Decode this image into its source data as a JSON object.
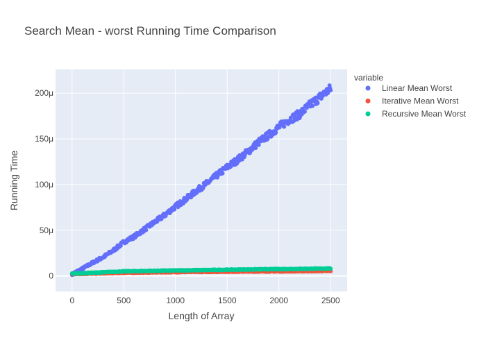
{
  "chart_data": {
    "type": "scatter",
    "title": "Search Mean - worst Running Time Comparison",
    "xlabel": "Length of Array",
    "ylabel": "Running Time",
    "xlim": [
      -160,
      2660
    ],
    "ylim": [
      -1.7e-05,
      0.000226
    ],
    "x_ticks": [
      0,
      500,
      1000,
      1500,
      2000,
      2500
    ],
    "x_tick_labels": [
      "0",
      "500",
      "1000",
      "1500",
      "2000",
      "2500"
    ],
    "y_ticks": [
      0,
      5e-05,
      0.0001,
      0.00015,
      0.0002
    ],
    "y_tick_labels": [
      "0",
      "50μ",
      "100μ",
      "150μ",
      "200μ"
    ],
    "grid": true,
    "background": "#e5ecf6",
    "legend": {
      "title": "variable",
      "position": "right"
    },
    "series": [
      {
        "name": "Linear Mean Worst",
        "color": "#636efa",
        "points": [
          [
            0,
            2e-06
          ],
          [
            100,
            8e-06
          ],
          [
            200,
            1.45e-05
          ],
          [
            300,
            2.05e-05
          ],
          [
            400,
            2.8e-05
          ],
          [
            500,
            3.7e-05
          ],
          [
            600,
            4.3e-05
          ],
          [
            700,
            5.1e-05
          ],
          [
            800,
            5.9e-05
          ],
          [
            900,
            6.7e-05
          ],
          [
            1000,
            7.6e-05
          ],
          [
            1100,
            8.4e-05
          ],
          [
            1200,
            9.3e-05
          ],
          [
            1300,
            0.000101
          ],
          [
            1400,
            0.00011
          ],
          [
            1500,
            0.000119
          ],
          [
            1600,
            0.000127
          ],
          [
            1700,
            0.000136
          ],
          [
            1800,
            0.000146
          ],
          [
            1900,
            0.000154
          ],
          [
            2000,
            0.000163
          ],
          [
            2100,
            0.000171
          ],
          [
            2200,
            0.000177
          ],
          [
            2300,
            0.000187
          ],
          [
            2400,
            0.000196
          ],
          [
            2500,
            0.000205
          ]
        ]
      },
      {
        "name": "Iterative Mean Worst",
        "color": "#ef553b",
        "points": [
          [
            0,
            2e-06
          ],
          [
            500,
            3.5e-06
          ],
          [
            1000,
            4.2e-06
          ],
          [
            1500,
            4.7e-06
          ],
          [
            2000,
            5e-06
          ],
          [
            2500,
            5.5e-06
          ]
        ]
      },
      {
        "name": "Recursive Mean Worst",
        "color": "#00cc96",
        "points": [
          [
            0,
            2.5e-06
          ],
          [
            500,
            5e-06
          ],
          [
            1000,
            6e-06
          ],
          [
            1500,
            6.8e-06
          ],
          [
            2000,
            7.5e-06
          ],
          [
            2500,
            8.2e-06
          ]
        ]
      }
    ]
  }
}
